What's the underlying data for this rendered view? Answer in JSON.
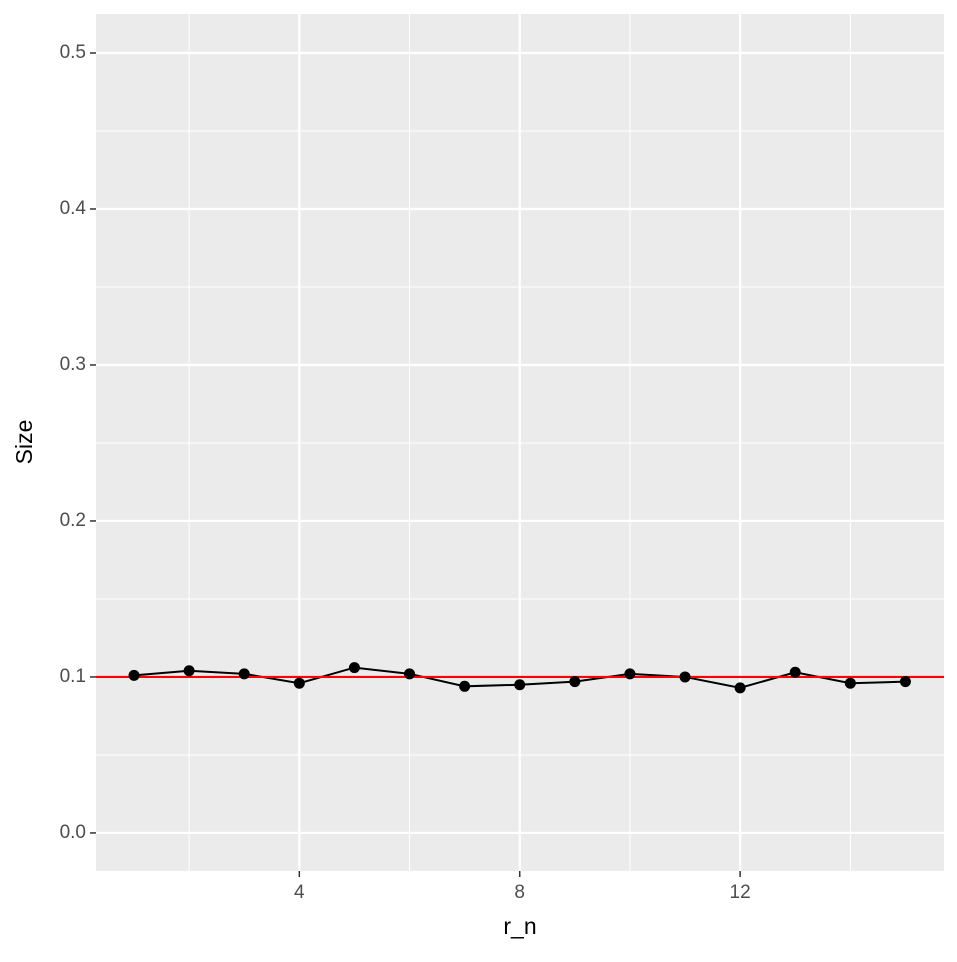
{
  "chart_data": {
    "type": "line",
    "x_label": "r_n",
    "y_label": "Size",
    "x": [
      1,
      2,
      3,
      4,
      5,
      6,
      7,
      8,
      9,
      10,
      11,
      12,
      13,
      14,
      15
    ],
    "series": [
      {
        "color": "#000000",
        "values": [
          0.101,
          0.104,
          0.102,
          0.096,
          0.106,
          0.102,
          0.094,
          0.095,
          0.097,
          0.102,
          0.1,
          0.093,
          0.103,
          0.096,
          0.097
        ]
      }
    ],
    "hline": {
      "value": 0.1,
      "color": "#ff0000"
    },
    "xlim": [
      0.31,
      15.7
    ],
    "xticks": [
      4,
      8,
      12
    ],
    "ylim": [
      -0.0244,
      0.525
    ],
    "yticks": [
      {
        "value": 0,
        "label": "0.0"
      },
      0.1,
      0.2,
      0.3,
      0.4,
      0.5
    ],
    "grid": true
  }
}
